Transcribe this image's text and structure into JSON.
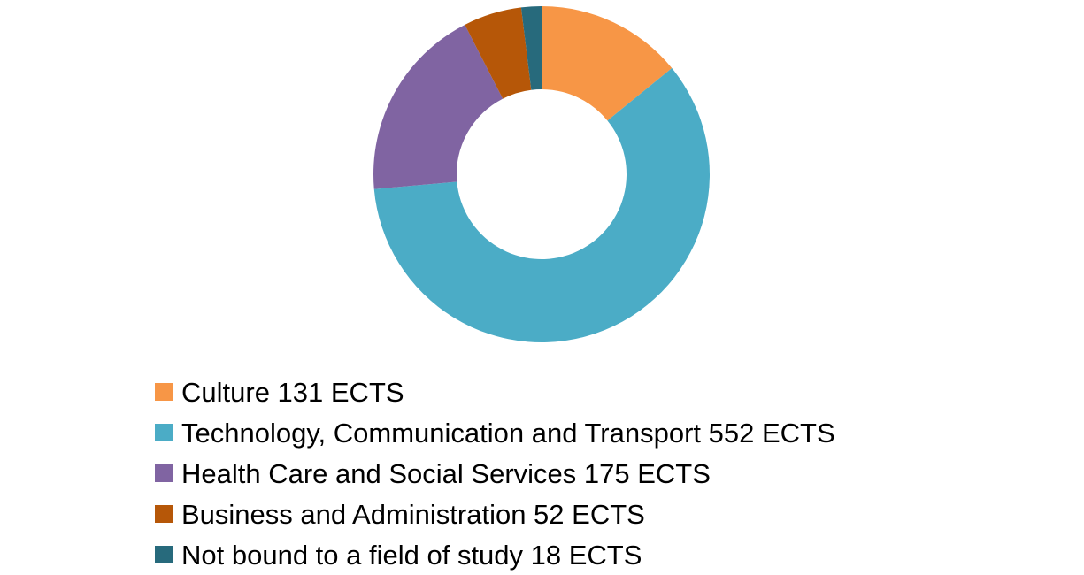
{
  "chart_data": {
    "type": "pie",
    "variant": "donut",
    "unit": "ECTS",
    "legend_position": "bottom",
    "slices": [
      {
        "label": "Culture 131 ECTS",
        "value": 131,
        "color": "#F79646"
      },
      {
        "label": "Technology, Communication and Transport 552 ECTS",
        "value": 552,
        "color": "#4BACC6"
      },
      {
        "label": "Health Care and Social Services 175 ECTS",
        "value": 175,
        "color": "#8064A2"
      },
      {
        "label": "Business and Administration 52 ECTS",
        "value": 52,
        "color": "#B65708"
      },
      {
        "label": "Not bound to a field of study 18 ECTS",
        "value": 18,
        "color": "#276A7C"
      }
    ]
  }
}
